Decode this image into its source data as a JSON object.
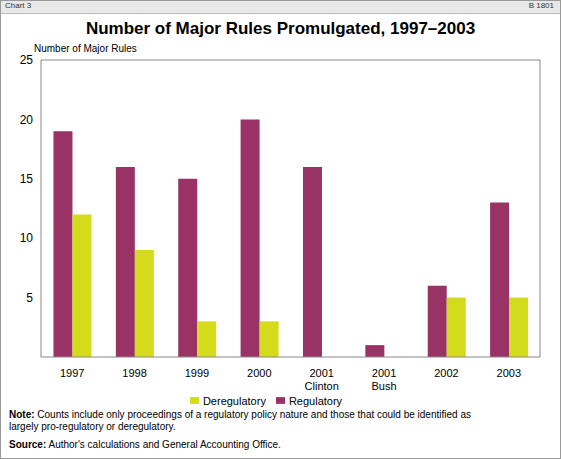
{
  "chart_data": {
    "type": "bar",
    "title": "Number of Major Rules Promulgated, 1997–2003",
    "header": "Chart 3",
    "code": "B 1801",
    "y_label": "Number of Major Rules",
    "categories": [
      "1997",
      "1998",
      "1999",
      "2000",
      "2001 Clinton",
      "2001 Bush",
      "2002",
      "2003"
    ],
    "series": [
      {
        "name": "Regulatory",
        "color": "#993366",
        "values": [
          19,
          16,
          15,
          20,
          16,
          1,
          6,
          13
        ]
      },
      {
        "name": "Deregulatory",
        "color": "#d4da1c",
        "values": [
          12,
          9,
          3,
          3,
          0,
          0,
          5,
          5
        ]
      }
    ],
    "ylim": [
      0,
      25
    ],
    "yticks": [
      5,
      10,
      15,
      20,
      25
    ],
    "grid": false,
    "legend": "bottom",
    "annotations": [
      "Note: Counts include only proceedings of a regulatory policy nature and those that could be identified as largely pro-regulatory or deregulatory.",
      "Source: Author's calculations and General Accounting Office."
    ]
  }
}
